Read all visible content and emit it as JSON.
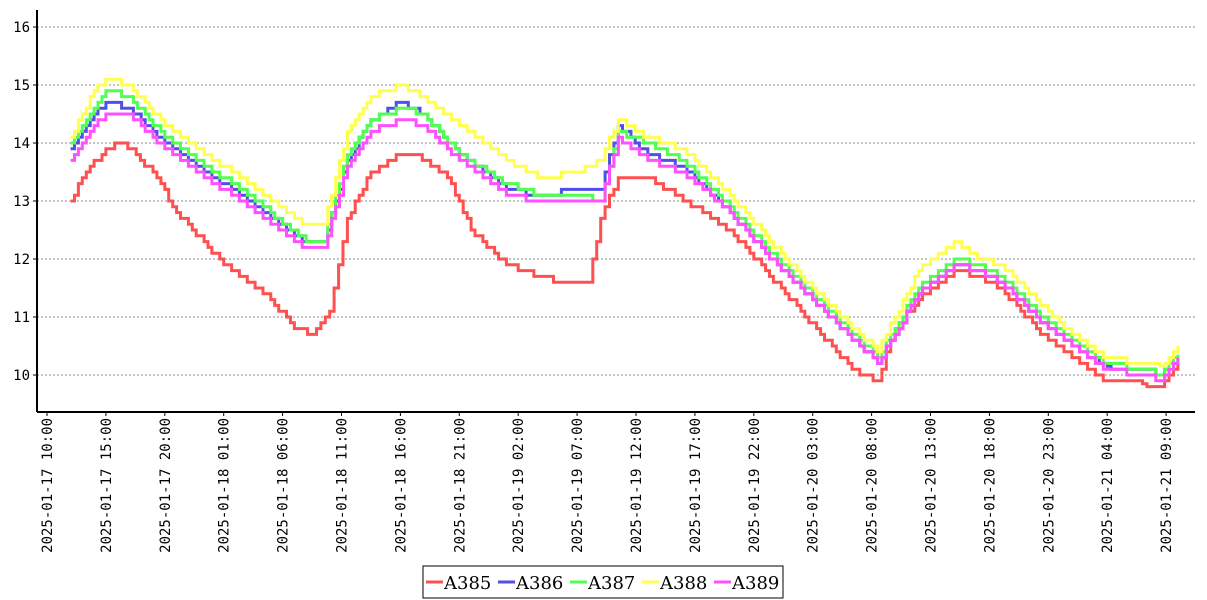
{
  "chart_data": {
    "type": "line",
    "title": "",
    "xlabel": "",
    "ylabel": "",
    "ylim": [
      9.4,
      16.3
    ],
    "yticks": [
      10,
      11,
      12,
      13,
      14,
      15,
      16
    ],
    "x_start": "2025-01-17 10:00",
    "x_end": "2025-01-21 10:00",
    "xtick_labels": [
      "2025-01-17 10:00",
      "2025-01-17 15:00",
      "2025-01-17 20:00",
      "2025-01-18 01:00",
      "2025-01-18 06:00",
      "2025-01-18 11:00",
      "2025-01-18 16:00",
      "2025-01-18 21:00",
      "2025-01-19 02:00",
      "2025-01-19 07:00",
      "2025-01-19 12:00",
      "2025-01-19 17:00",
      "2025-01-19 22:00",
      "2025-01-20 03:00",
      "2025-01-20 08:00",
      "2025-01-20 13:00",
      "2025-01-20 18:00",
      "2025-01-20 23:00",
      "2025-01-21 04:00",
      "2025-01-21 09:00"
    ],
    "grid": "horizontal dotted",
    "legend_position": "bottom",
    "series": [
      {
        "name": "A385",
        "color": "#ff5050",
        "x": [
          "2025-01-17 12:00",
          "2025-01-17 13:00",
          "2025-01-17 15:00",
          "2025-01-17 16:30",
          "2025-01-17 19:00",
          "2025-01-17 21:00",
          "2025-01-18 01:00",
          "2025-01-18 05:00",
          "2025-01-18 07:00",
          "2025-01-18 08:30",
          "2025-01-18 10:00",
          "2025-01-18 11:30",
          "2025-01-18 13:30",
          "2025-01-18 16:00",
          "2025-01-18 17:30",
          "2025-01-18 20:00",
          "2025-01-18 22:00",
          "2025-01-19 01:00",
          "2025-01-19 04:00",
          "2025-01-19 06:00",
          "2025-01-19 08:00",
          "2025-01-19 09:00",
          "2025-01-19 10:30",
          "2025-01-19 13:00",
          "2025-01-19 17:00",
          "2025-01-19 20:00",
          "2025-01-19 23:00",
          "2025-01-20 02:00",
          "2025-01-20 05:00",
          "2025-01-20 07:00",
          "2025-01-20 08:30",
          "2025-01-20 10:00",
          "2025-01-20 12:00",
          "2025-01-20 15:00",
          "2025-01-20 17:00",
          "2025-01-20 19:00",
          "2025-01-20 22:00",
          "2025-01-21 01:00",
          "2025-01-21 04:00",
          "2025-01-21 07:00",
          "2025-01-21 08:30",
          "2025-01-21 10:00"
        ],
        "values": [
          13.0,
          13.4,
          13.9,
          14.0,
          13.5,
          12.8,
          11.9,
          11.3,
          10.8,
          10.7,
          11.1,
          12.7,
          13.5,
          13.8,
          13.8,
          13.4,
          12.5,
          11.9,
          11.7,
          11.6,
          11.6,
          12.7,
          13.4,
          13.4,
          12.9,
          12.5,
          11.8,
          11.1,
          10.4,
          10.0,
          9.9,
          10.8,
          11.3,
          11.8,
          11.7,
          11.5,
          10.8,
          10.3,
          9.9,
          9.85,
          9.8,
          10.2
        ]
      },
      {
        "name": "A386",
        "color": "#5050e8",
        "x": [
          "2025-01-17 12:00",
          "2025-01-17 14:00",
          "2025-01-17 15:00",
          "2025-01-17 17:00",
          "2025-01-17 20:00",
          "2025-01-18 01:00",
          "2025-01-18 05:00",
          "2025-01-18 08:00",
          "2025-01-18 09:30",
          "2025-01-18 11:30",
          "2025-01-18 13:30",
          "2025-01-18 16:00",
          "2025-01-18 18:00",
          "2025-01-18 21:00",
          "2025-01-19 01:00",
          "2025-01-19 04:00",
          "2025-01-19 07:00",
          "2025-01-19 09:00",
          "2025-01-19 10:30",
          "2025-01-19 13:00",
          "2025-01-19 16:00",
          "2025-01-19 20:00",
          "2025-01-19 23:00",
          "2025-01-20 02:00",
          "2025-01-20 05:00",
          "2025-01-20 07:00",
          "2025-01-20 08:30",
          "2025-01-20 10:00",
          "2025-01-20 12:00",
          "2025-01-20 15:00",
          "2025-01-20 17:00",
          "2025-01-20 19:00",
          "2025-01-20 22:00",
          "2025-01-21 01:00",
          "2025-01-21 04:00",
          "2025-01-21 07:00",
          "2025-01-21 08:30",
          "2025-01-21 10:00"
        ],
        "values": [
          13.9,
          14.5,
          14.7,
          14.6,
          14.0,
          13.3,
          12.7,
          12.3,
          12.3,
          13.7,
          14.4,
          14.7,
          14.5,
          13.8,
          13.2,
          13.1,
          13.2,
          13.2,
          14.3,
          13.8,
          13.6,
          12.8,
          12.1,
          11.5,
          10.9,
          10.5,
          10.2,
          10.7,
          11.4,
          11.9,
          11.8,
          11.6,
          11.0,
          10.5,
          10.15,
          10.1,
          10.0,
          10.3
        ]
      },
      {
        "name": "A387",
        "color": "#50ff50",
        "x": [
          "2025-01-17 12:00",
          "2025-01-17 14:00",
          "2025-01-17 15:00",
          "2025-01-17 17:00",
          "2025-01-17 20:00",
          "2025-01-18 01:00",
          "2025-01-18 05:00",
          "2025-01-18 08:00",
          "2025-01-18 09:30",
          "2025-01-18 11:30",
          "2025-01-18 13:30",
          "2025-01-18 16:00",
          "2025-01-18 18:00",
          "2025-01-18 21:00",
          "2025-01-19 01:00",
          "2025-01-19 04:00",
          "2025-01-19 07:00",
          "2025-01-19 09:00",
          "2025-01-19 10:30",
          "2025-01-19 13:00",
          "2025-01-19 16:00",
          "2025-01-19 20:00",
          "2025-01-19 23:00",
          "2025-01-20 02:00",
          "2025-01-20 05:00",
          "2025-01-20 07:00",
          "2025-01-20 08:30",
          "2025-01-20 10:00",
          "2025-01-20 12:00",
          "2025-01-20 15:00",
          "2025-01-20 17:00",
          "2025-01-20 19:00",
          "2025-01-20 22:00",
          "2025-01-21 01:00",
          "2025-01-21 04:00",
          "2025-01-21 07:00",
          "2025-01-21 08:30",
          "2025-01-21 10:00"
        ],
        "values": [
          14.0,
          14.6,
          14.9,
          14.8,
          14.1,
          13.4,
          12.8,
          12.3,
          12.3,
          13.8,
          14.4,
          14.6,
          14.5,
          13.8,
          13.3,
          13.1,
          13.1,
          13.0,
          14.2,
          14.0,
          13.7,
          12.9,
          12.2,
          11.6,
          11.0,
          10.6,
          10.3,
          10.8,
          11.5,
          12.0,
          11.9,
          11.7,
          11.1,
          10.6,
          10.2,
          10.1,
          10.0,
          10.35
        ]
      },
      {
        "name": "A388",
        "color": "#ffff50",
        "x": [
          "2025-01-17 12:00",
          "2025-01-17 14:00",
          "2025-01-17 15:00",
          "2025-01-17 17:00",
          "2025-01-17 20:00",
          "2025-01-18 01:00",
          "2025-01-18 05:00",
          "2025-01-18 08:00",
          "2025-01-18 09:30",
          "2025-01-18 11:30",
          "2025-01-18 13:30",
          "2025-01-18 16:00",
          "2025-01-18 18:00",
          "2025-01-18 21:00",
          "2025-01-19 01:00",
          "2025-01-19 04:00",
          "2025-01-19 07:00",
          "2025-01-19 09:00",
          "2025-01-19 10:30",
          "2025-01-19 13:00",
          "2025-01-19 16:00",
          "2025-01-19 20:00",
          "2025-01-19 23:00",
          "2025-01-20 02:00",
          "2025-01-20 05:00",
          "2025-01-20 07:00",
          "2025-01-20 08:30",
          "2025-01-20 10:00",
          "2025-01-20 12:00",
          "2025-01-20 15:00",
          "2025-01-20 17:00",
          "2025-01-20 19:00",
          "2025-01-20 22:00",
          "2025-01-21 01:00",
          "2025-01-21 04:00",
          "2025-01-21 07:00",
          "2025-01-21 08:30",
          "2025-01-21 10:00"
        ],
        "values": [
          14.1,
          14.9,
          15.1,
          15.0,
          14.3,
          13.6,
          13.0,
          12.6,
          12.6,
          14.2,
          14.8,
          15.0,
          14.8,
          14.3,
          13.7,
          13.4,
          13.5,
          13.7,
          14.4,
          14.1,
          13.9,
          13.1,
          12.4,
          11.7,
          11.1,
          10.7,
          10.4,
          11.0,
          11.8,
          12.3,
          12.0,
          11.9,
          11.3,
          10.7,
          10.3,
          10.2,
          10.15,
          10.5
        ]
      },
      {
        "name": "A389",
        "color": "#ff50ff",
        "x": [
          "2025-01-17 12:00",
          "2025-01-17 14:00",
          "2025-01-17 15:00",
          "2025-01-17 17:00",
          "2025-01-17 20:00",
          "2025-01-18 01:00",
          "2025-01-18 05:00",
          "2025-01-18 08:00",
          "2025-01-18 09:30",
          "2025-01-18 11:30",
          "2025-01-18 13:30",
          "2025-01-18 16:00",
          "2025-01-18 18:00",
          "2025-01-18 21:00",
          "2025-01-19 01:00",
          "2025-01-19 04:00",
          "2025-01-19 07:00",
          "2025-01-19 09:00",
          "2025-01-19 10:30",
          "2025-01-19 13:00",
          "2025-01-19 16:00",
          "2025-01-19 20:00",
          "2025-01-19 23:00",
          "2025-01-20 02:00",
          "2025-01-20 05:00",
          "2025-01-20 07:00",
          "2025-01-20 08:30",
          "2025-01-20 10:00",
          "2025-01-20 12:00",
          "2025-01-20 15:00",
          "2025-01-20 17:00",
          "2025-01-20 19:00",
          "2025-01-20 22:00",
          "2025-01-21 01:00",
          "2025-01-21 04:00",
          "2025-01-21 07:00",
          "2025-01-21 08:30",
          "2025-01-21 10:00"
        ],
        "values": [
          13.7,
          14.3,
          14.5,
          14.5,
          13.9,
          13.2,
          12.6,
          12.2,
          12.2,
          13.6,
          14.2,
          14.4,
          14.3,
          13.7,
          13.1,
          13.0,
          13.0,
          13.0,
          14.1,
          13.7,
          13.5,
          12.8,
          12.1,
          11.5,
          10.9,
          10.5,
          10.2,
          10.7,
          11.4,
          11.9,
          11.8,
          11.6,
          11.0,
          10.5,
          10.1,
          10.0,
          9.9,
          10.3
        ]
      }
    ]
  }
}
